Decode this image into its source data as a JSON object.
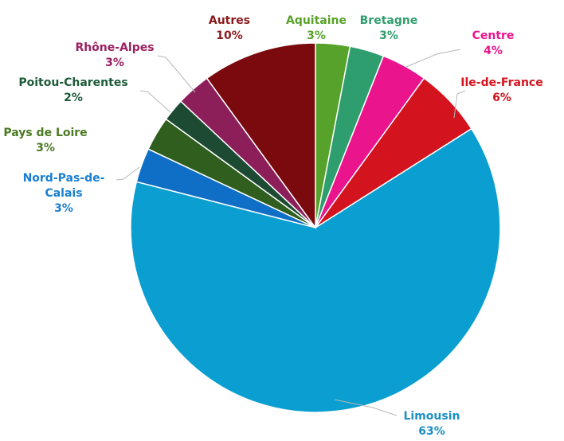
{
  "chart_data": {
    "type": "pie",
    "title": "",
    "start_angle_deg": 0,
    "direction": "clockwise",
    "legend": "none",
    "slices": [
      {
        "name": "Aquitaine",
        "label": "Aquitaine",
        "value": 3,
        "value_label": "3%",
        "color": "#57a22b",
        "label_color": "#57a22b"
      },
      {
        "name": "Bretagne",
        "label": "Bretagne",
        "value": 3,
        "value_label": "3%",
        "color": "#2f9e6e",
        "label_color": "#2f9e6e"
      },
      {
        "name": "Centre",
        "label": "Centre",
        "value": 4,
        "value_label": "4%",
        "color": "#ea148c",
        "label_color": "#ea148c"
      },
      {
        "name": "Ile-de-France",
        "label": "Ile-de-France",
        "value": 6,
        "value_label": "6%",
        "color": "#d3131d",
        "label_color": "#d3131d"
      },
      {
        "name": "Limousin",
        "label": "Limousin",
        "value": 63,
        "value_label": "63%",
        "color": "#0a9fd0",
        "label_color": "#1a8fc8"
      },
      {
        "name": "Nord-Pas-de-Calais",
        "label_lines": [
          "Nord-Pas-de-",
          "Calais"
        ],
        "value": 3,
        "value_label": "3%",
        "color": "#0f6fc6",
        "label_color": "#1a7fd0"
      },
      {
        "name": "Pays de Loire",
        "label": "Pays de Loire",
        "value": 3,
        "value_label": "3%",
        "color": "#2f5e1e",
        "label_color": "#4a7a22"
      },
      {
        "name": "Poitou-Charentes",
        "label": "Poitou-Charentes",
        "value": 2,
        "value_label": "2%",
        "color": "#1d4a33",
        "label_color": "#1d5a3a"
      },
      {
        "name": "Rhône-Alpes",
        "label": "Rhône-Alpes",
        "value": 3,
        "value_label": "3%",
        "color": "#8c1f5a",
        "label_color": "#9b2060"
      },
      {
        "name": "Autres",
        "label": "Autres",
        "value": 10,
        "value_label": "10%",
        "color": "#7a0a0e",
        "label_color": "#8a1a1c"
      }
    ]
  }
}
